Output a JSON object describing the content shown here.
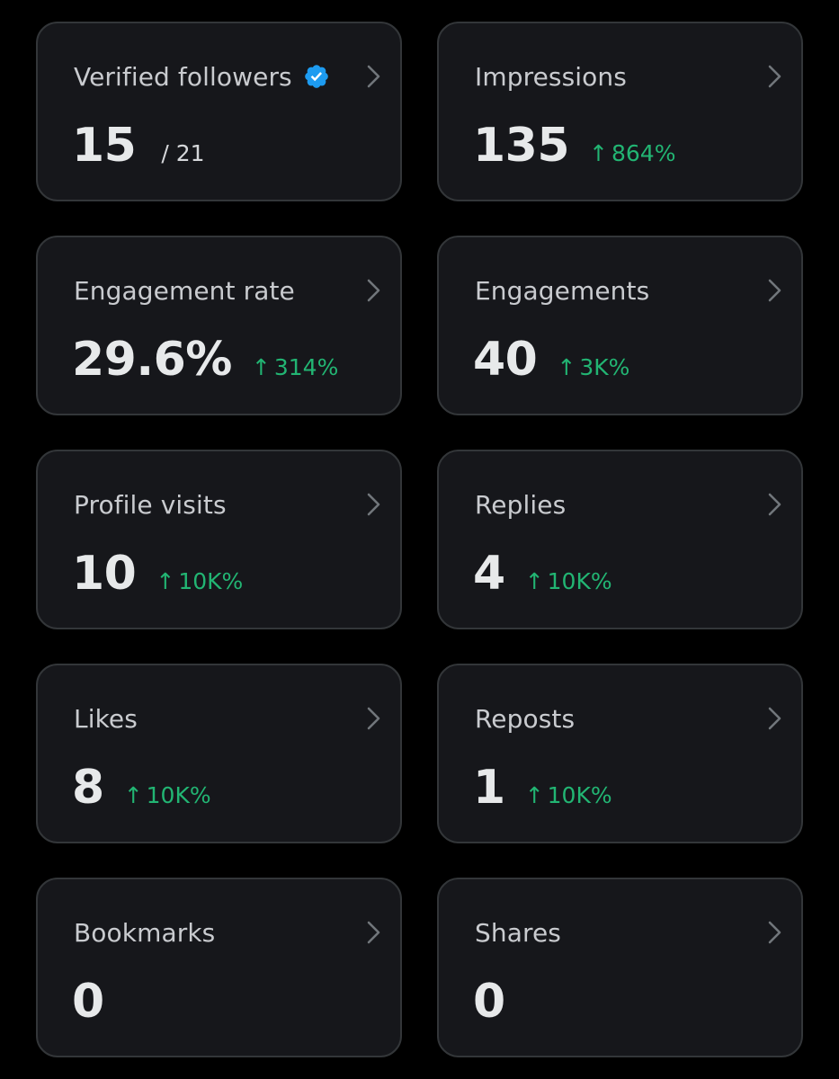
{
  "colors": {
    "background": "#000000",
    "card_background": "#16171b",
    "card_border": "#333639",
    "verified_blue": "#1d9bf0",
    "delta_green": "#22b573"
  },
  "cards": [
    {
      "title": "Verified followers",
      "value": "15",
      "total": "/ 21",
      "verified_badge": true
    },
    {
      "title": "Impressions",
      "value": "135",
      "delta": "864%"
    },
    {
      "title": "Engagement rate",
      "value": "29.6%",
      "delta": "314%"
    },
    {
      "title": "Engagements",
      "value": "40",
      "delta": "3K%"
    },
    {
      "title": "Profile visits",
      "value": "10",
      "delta": "10K%"
    },
    {
      "title": "Replies",
      "value": "4",
      "delta": "10K%"
    },
    {
      "title": "Likes",
      "value": "8",
      "delta": "10K%"
    },
    {
      "title": "Reposts",
      "value": "1",
      "delta": "10K%"
    },
    {
      "title": "Bookmarks",
      "value": "0"
    },
    {
      "title": "Shares",
      "value": "0"
    }
  ],
  "icons": {
    "chevron": "chevron-right-icon",
    "verified": "verified-badge-icon",
    "arrow": "arrow-up-icon"
  },
  "arrow_glyph": "↑"
}
